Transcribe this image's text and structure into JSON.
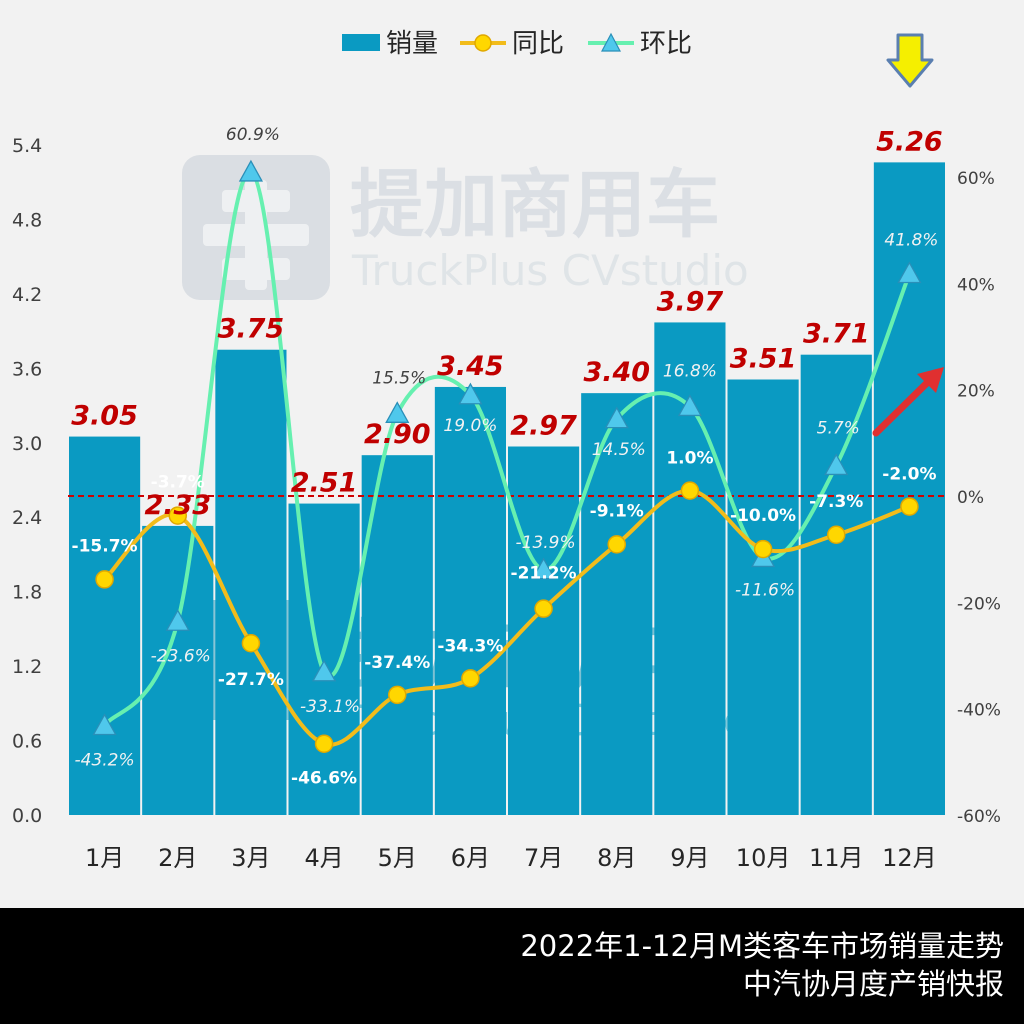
{
  "colors": {
    "bar": "#0a9ac2",
    "yoy": "#f2bc1b",
    "yoy_marker": "#ffd700",
    "mom": "#66f0b0",
    "mom_marker": "#4fc8ec",
    "bar_label": "#c00000",
    "reference_line": "#d00000",
    "down_arrow": "#f5ef00",
    "up_arrow": "#e02020",
    "background": "#f2f2f2"
  },
  "watermark": {
    "brand_cn": "提加商用车",
    "brand_en": "TruckPlus CVstudio"
  },
  "footer": {
    "line1": "2022年1-12月M类客车市场销量走势",
    "line2": "中汽协月度产销快报"
  },
  "chart_data": {
    "type": "bar",
    "categories": [
      "1月",
      "2月",
      "3月",
      "4月",
      "5月",
      "6月",
      "7月",
      "8月",
      "9月",
      "10月",
      "11月",
      "12月"
    ],
    "legend": [
      "销量",
      "同比",
      "环比"
    ],
    "series": [
      {
        "name": "销量",
        "type": "bar",
        "axis": "left",
        "values": [
          3.05,
          2.33,
          3.75,
          2.51,
          2.9,
          3.45,
          2.97,
          3.4,
          3.97,
          3.51,
          3.71,
          5.26
        ],
        "labels": [
          "3.05",
          "2.33",
          "3.75",
          "2.51",
          "2.90",
          "3.45",
          "2.97",
          "3.40",
          "3.97",
          "3.51",
          "3.71",
          "5.26"
        ]
      },
      {
        "name": "同比",
        "type": "line",
        "axis": "right",
        "marker": "circle",
        "values": [
          -15.7,
          -3.7,
          -27.7,
          -46.6,
          -37.4,
          -34.3,
          -21.2,
          -9.1,
          1.0,
          -10.0,
          -7.3,
          -2.0
        ],
        "labels": [
          "-15.7%",
          "-3.7%",
          "-27.7%",
          "-46.6%",
          "-37.4%",
          "-34.3%",
          "-21.2%",
          "-9.1%",
          "1.0%",
          "-10.0%",
          "-7.3%",
          "-2.0%"
        ]
      },
      {
        "name": "环比",
        "type": "line",
        "axis": "right",
        "marker": "triangle",
        "values": [
          -43.2,
          -23.6,
          60.9,
          -33.1,
          15.5,
          19.0,
          -13.9,
          14.5,
          16.8,
          -11.6,
          5.7,
          41.8
        ],
        "labels": [
          "-43.2%",
          "-23.6%",
          "60.9%",
          "-33.1%",
          "15.5%",
          "19.0%",
          "-13.9%",
          "14.5%",
          "16.8%",
          "-11.6%",
          "5.7%",
          "41.8%"
        ]
      }
    ],
    "y_left": {
      "min": 0,
      "max": 5.4,
      "ticks": [
        "0.0",
        "0.6",
        "1.2",
        "1.8",
        "2.4",
        "3.0",
        "3.6",
        "4.2",
        "4.8",
        "5.4"
      ]
    },
    "y_right": {
      "min": -60,
      "max": 66,
      "ticks": [
        "-60%",
        "-40%",
        "-20%",
        "0%",
        "20%",
        "40%",
        "60%"
      ]
    },
    "reference_line_value": 0,
    "grid": false,
    "legend_position": "top-center",
    "highlight_category": "12月"
  }
}
